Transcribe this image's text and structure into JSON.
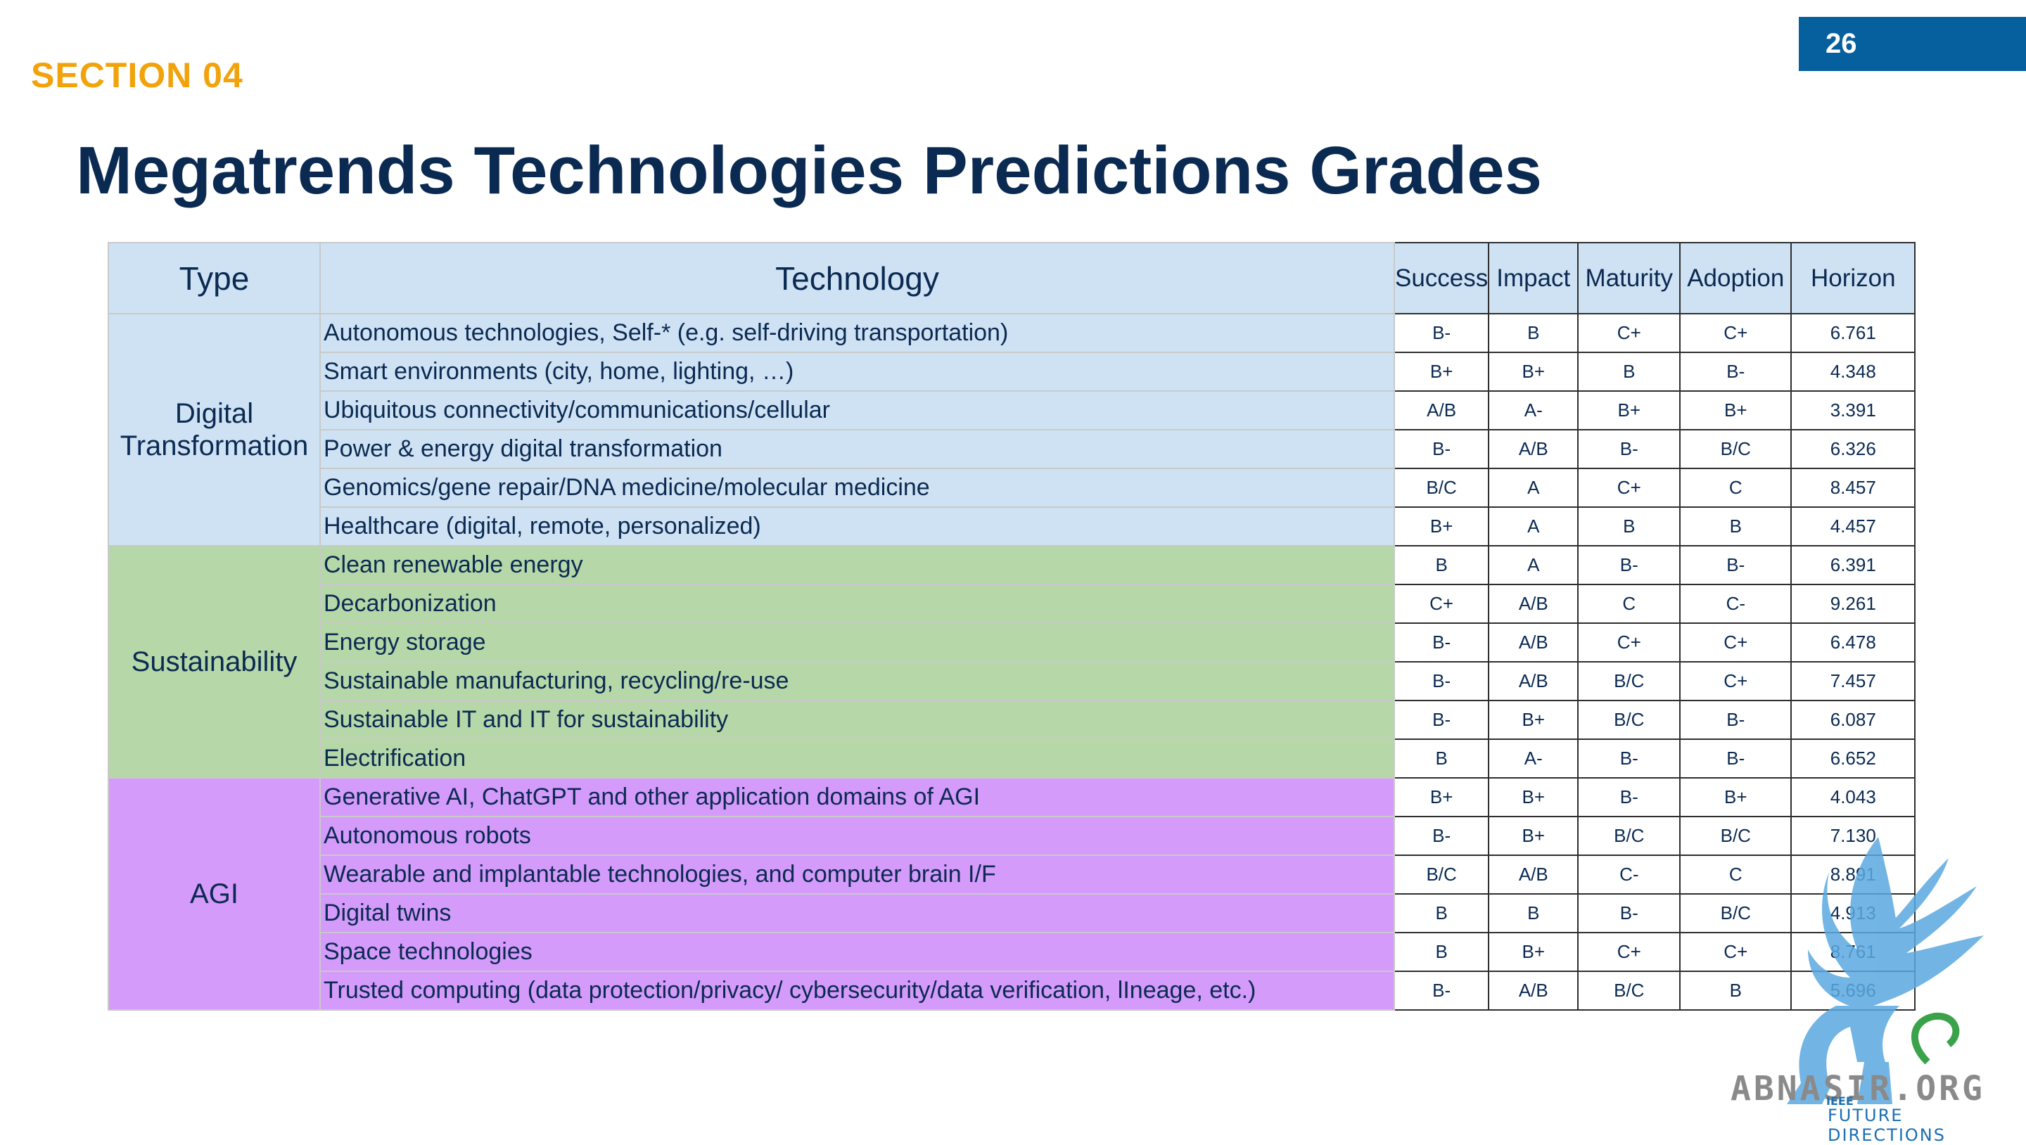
{
  "page_number": "26",
  "section_label": "SECTION 04",
  "title": "Megatrends Technologies Predictions Grades",
  "table": {
    "headers": {
      "type": "Type",
      "technology": "Technology",
      "success": "Success",
      "impact": "Impact",
      "maturity": "Maturity",
      "adoption": "Adoption",
      "horizon": "Horizon"
    },
    "groups": [
      {
        "type": "Digital Transformation",
        "color": "#cfe2f3",
        "rows": [
          {
            "technology": "Autonomous technologies, Self-* (e.g. self-driving transportation)",
            "success": "B-",
            "impact": "B",
            "maturity": "C+",
            "adoption": "C+",
            "horizon": "6.761"
          },
          {
            "technology": "Smart environments (city, home, lighting, …)",
            "success": "B+",
            "impact": "B+",
            "maturity": "B",
            "adoption": "B-",
            "horizon": "4.348"
          },
          {
            "technology": "Ubiquitous connectivity/communications/cellular",
            "success": "A/B",
            "impact": "A-",
            "maturity": "B+",
            "adoption": "B+",
            "horizon": "3.391"
          },
          {
            "technology": "Power & energy digital transformation",
            "success": "B-",
            "impact": "A/B",
            "maturity": "B-",
            "adoption": "B/C",
            "horizon": "6.326"
          },
          {
            "technology": "Genomics/gene repair/DNA medicine/molecular medicine",
            "success": "B/C",
            "impact": "A",
            "maturity": "C+",
            "adoption": "C",
            "horizon": "8.457"
          },
          {
            "technology": "Healthcare (digital, remote, personalized)",
            "success": "B+",
            "impact": "A",
            "maturity": "B",
            "adoption": "B",
            "horizon": "4.457"
          }
        ]
      },
      {
        "type": "Sustainability",
        "color": "#b6d7a8",
        "rows": [
          {
            "technology": "Clean renewable energy",
            "success": "B",
            "impact": "A",
            "maturity": "B-",
            "adoption": "B-",
            "horizon": "6.391"
          },
          {
            "technology": "Decarbonization",
            "success": "C+",
            "impact": "A/B",
            "maturity": "C",
            "adoption": "C-",
            "horizon": "9.261"
          },
          {
            "technology": "Energy storage",
            "success": "B-",
            "impact": "A/B",
            "maturity": "C+",
            "adoption": "C+",
            "horizon": "6.478"
          },
          {
            "technology": "Sustainable manufacturing, recycling/re-use",
            "success": "B-",
            "impact": "A/B",
            "maturity": "B/C",
            "adoption": "C+",
            "horizon": "7.457"
          },
          {
            "technology": "Sustainable IT and IT for sustainability",
            "success": "B-",
            "impact": "B+",
            "maturity": "B/C",
            "adoption": "B-",
            "horizon": "6.087"
          },
          {
            "technology": "Electrification",
            "success": "B",
            "impact": "A-",
            "maturity": "B-",
            "adoption": "B-",
            "horizon": "6.652"
          }
        ]
      },
      {
        "type": "AGI",
        "color": "#d49bfa",
        "rows": [
          {
            "technology": "Generative AI, ChatGPT and other application domains of AGI",
            "success": "B+",
            "impact": "B+",
            "maturity": "B-",
            "adoption": "B+",
            "horizon": "4.043"
          },
          {
            "technology": "Autonomous robots",
            "success": "B-",
            "impact": "B+",
            "maturity": "B/C",
            "adoption": "B/C",
            "horizon": "7.130"
          },
          {
            "technology": "Wearable and implantable technologies, and computer brain I/F",
            "success": "B/C",
            "impact": "A/B",
            "maturity": "C-",
            "adoption": "C",
            "horizon": "8.891"
          },
          {
            "technology": "Digital twins",
            "success": "B",
            "impact": "B",
            "maturity": "B-",
            "adoption": "B/C",
            "horizon": "4.913"
          },
          {
            "technology": "Space technologies",
            "success": "B",
            "impact": "B+",
            "maturity": "C+",
            "adoption": "C+",
            "horizon": "8.761"
          },
          {
            "technology": "Trusted computing (data protection/privacy/ cybersecurity/data verification, lIneage, etc.)",
            "success": "B-",
            "impact": "A/B",
            "maturity": "B/C",
            "adoption": "B",
            "horizon": "5.696"
          }
        ]
      }
    ]
  },
  "watermark": {
    "text": "ABNASIR.ORG",
    "ieee": "IEEE",
    "future_directions": "FUTURE DIRECTIONS",
    "icon": "griffin-logo-icon"
  }
}
